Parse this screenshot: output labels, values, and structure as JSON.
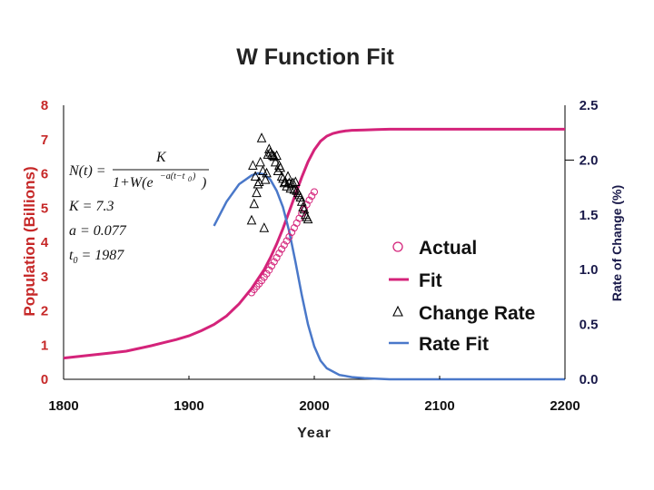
{
  "chart_data": {
    "type": "line",
    "title": "W Function Fit",
    "xlabel": "Year",
    "ylabel": "Population (Billions)",
    "y2label": "Rate of Change (%)",
    "xlim": [
      1800,
      2200
    ],
    "ylim": [
      0,
      8
    ],
    "y2lim": [
      0,
      2.5
    ],
    "x_ticks": [
      "1800",
      "1900",
      "2000",
      "2100",
      "2200"
    ],
    "y_ticks": [
      "0",
      "1",
      "2",
      "3",
      "4",
      "5",
      "6",
      "7",
      "8"
    ],
    "y2_ticks": [
      "0.0",
      "0.5",
      "1.0",
      "1.5",
      "2.0",
      "2.5"
    ],
    "colors": {
      "population": "#d4237a",
      "rate": "#4a78c9",
      "axis": "#000000",
      "left_axis_text": "#c62828"
    },
    "legend": [
      "Actual",
      "Fit",
      "Change Rate",
      "Rate Fit"
    ],
    "legend_position": "right-middle",
    "equation": {
      "lhs": "N(t) =",
      "numerator": "K",
      "denominator_a": "1+W(e",
      "exponent": "−a(t−t",
      "exponent_sub": "0",
      "exponent_close": ")",
      "denominator_b": ")",
      "k_line": "K = 7.3",
      "a_line": "a = 0.077",
      "t0_label": "t",
      "t0_sub": "0",
      "t0_value": " = 1987"
    },
    "series": [
      {
        "name": "Fit",
        "axis": "left",
        "x": [
          1800,
          1810,
          1820,
          1830,
          1840,
          1850,
          1860,
          1870,
          1880,
          1890,
          1900,
          1910,
          1920,
          1930,
          1940,
          1950,
          1960,
          1965,
          1970,
          1975,
          1980,
          1985,
          1990,
          1995,
          2000,
          2005,
          2010,
          2015,
          2020,
          2025,
          2030,
          2040,
          2050,
          2060,
          2080,
          2100,
          2150,
          2200
        ],
        "values": [
          0.62,
          0.66,
          0.7,
          0.74,
          0.78,
          0.82,
          0.9,
          0.98,
          1.07,
          1.16,
          1.27,
          1.42,
          1.6,
          1.85,
          2.2,
          2.65,
          3.2,
          3.55,
          3.95,
          4.4,
          4.9,
          5.4,
          5.9,
          6.35,
          6.7,
          6.95,
          7.1,
          7.18,
          7.22,
          7.25,
          7.27,
          7.28,
          7.29,
          7.3,
          7.3,
          7.3,
          7.3,
          7.3
        ]
      },
      {
        "name": "Actual",
        "axis": "left",
        "x": [
          1950,
          1952,
          1954,
          1956,
          1958,
          1960,
          1962,
          1964,
          1966,
          1968,
          1970,
          1972,
          1974,
          1976,
          1978,
          1980,
          1982,
          1984,
          1986,
          1988,
          1990,
          1992,
          1994,
          1996,
          1998,
          2000
        ],
        "values": [
          2.53,
          2.62,
          2.71,
          2.79,
          2.88,
          2.98,
          3.08,
          3.19,
          3.31,
          3.43,
          3.55,
          3.68,
          3.8,
          3.92,
          4.04,
          4.16,
          4.29,
          4.42,
          4.56,
          4.7,
          4.84,
          4.97,
          5.1,
          5.23,
          5.35,
          5.47
        ]
      },
      {
        "name": "Rate Fit",
        "axis": "right",
        "x": [
          1920,
          1930,
          1940,
          1950,
          1955,
          1960,
          1965,
          1970,
          1975,
          1980,
          1985,
          1990,
          1995,
          2000,
          2005,
          2010,
          2020,
          2030,
          2040,
          2060,
          2100,
          2150,
          2200
        ],
        "values": [
          1.4,
          1.62,
          1.78,
          1.86,
          1.88,
          1.87,
          1.82,
          1.72,
          1.57,
          1.35,
          1.07,
          0.77,
          0.5,
          0.3,
          0.17,
          0.1,
          0.04,
          0.02,
          0.01,
          0.0,
          0.0,
          0.0,
          0.0
        ]
      },
      {
        "name": "Change Rate",
        "axis": "right",
        "x": [
          1950,
          1951,
          1952,
          1953,
          1954,
          1955,
          1956,
          1957,
          1958,
          1959,
          1960,
          1961,
          1962,
          1963,
          1964,
          1965,
          1966,
          1967,
          1968,
          1969,
          1970,
          1971,
          1972,
          1973,
          1974,
          1975,
          1976,
          1977,
          1978,
          1979,
          1980,
          1981,
          1982,
          1983,
          1984,
          1985,
          1986,
          1987,
          1988,
          1989,
          1990,
          1991,
          1992,
          1993,
          1994,
          1995
        ],
        "values": [
          1.45,
          1.95,
          1.6,
          1.85,
          1.7,
          1.78,
          1.8,
          1.98,
          2.2,
          1.9,
          1.38,
          1.82,
          1.88,
          2.05,
          2.1,
          2.07,
          2.05,
          2.04,
          2.03,
          1.98,
          2.04,
          1.9,
          1.95,
          1.93,
          1.85,
          1.83,
          1.79,
          1.8,
          1.76,
          1.85,
          1.79,
          1.74,
          1.78,
          1.79,
          1.73,
          1.8,
          1.72,
          1.7,
          1.68,
          1.66,
          1.62,
          1.57,
          1.55,
          1.5,
          1.48,
          1.46
        ]
      }
    ]
  }
}
